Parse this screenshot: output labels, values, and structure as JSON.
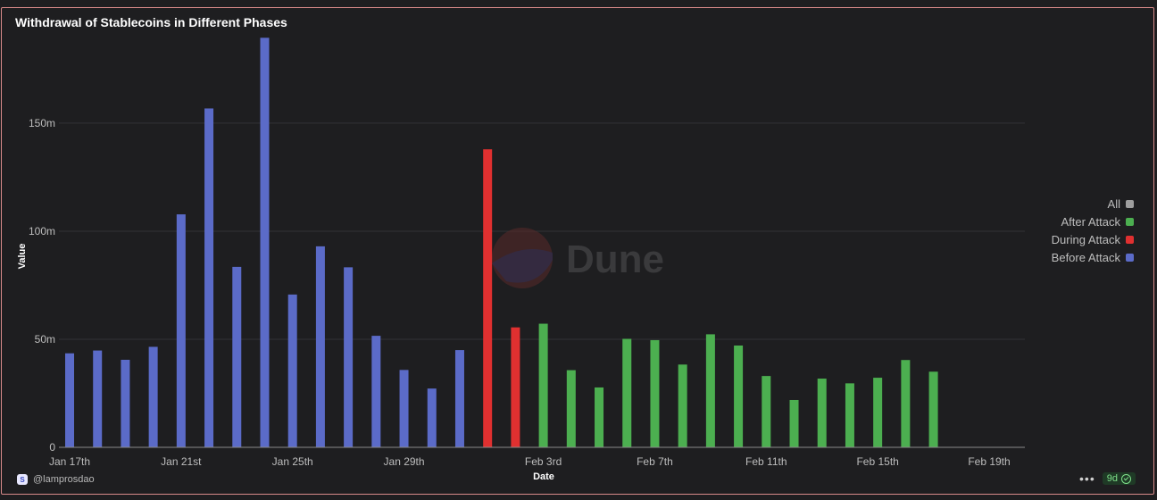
{
  "title": "Withdrawal of Stablecoins in Different Phases",
  "watermark": "Dune",
  "footer": {
    "user": "@lamprosdao",
    "age": "9d"
  },
  "legend": [
    {
      "label": "All",
      "color": "#9e9e9e"
    },
    {
      "label": "After Attack",
      "color": "#4caf50"
    },
    {
      "label": "During Attack",
      "color": "#e03030"
    },
    {
      "label": "Before Attack",
      "color": "#5b6bc8"
    }
  ],
  "chart_data": {
    "type": "bar",
    "xlabel": "Date",
    "ylabel": "Value",
    "ylim": [
      0,
      195000000
    ],
    "yticks": [
      {
        "value": 0,
        "label": "0"
      },
      {
        "value": 50000000,
        "label": "50m"
      },
      {
        "value": 100000000,
        "label": "100m"
      },
      {
        "value": 150000000,
        "label": "150m"
      }
    ],
    "xticks": [
      {
        "date": "2022-01-17",
        "label": "Jan 17th"
      },
      {
        "date": "2022-01-21",
        "label": "Jan 21st"
      },
      {
        "date": "2022-01-25",
        "label": "Jan 25th"
      },
      {
        "date": "2022-01-29",
        "label": "Jan 29th"
      },
      {
        "date": "2022-02-03",
        "label": "Feb 3rd"
      },
      {
        "date": "2022-02-07",
        "label": "Feb 7th"
      },
      {
        "date": "2022-02-11",
        "label": "Feb 11th"
      },
      {
        "date": "2022-02-15",
        "label": "Feb 15th"
      },
      {
        "date": "2022-02-19",
        "label": "Feb 19th"
      }
    ],
    "series": [
      {
        "name": "Before Attack",
        "color": "#5b6bc8",
        "dates": [
          "2022-01-17",
          "2022-01-18",
          "2022-01-19",
          "2022-01-20",
          "2022-01-21",
          "2022-01-22",
          "2022-01-23",
          "2022-01-24",
          "2022-01-25",
          "2022-01-26",
          "2022-01-27",
          "2022-01-28",
          "2022-01-29",
          "2022-01-30",
          "2022-01-31"
        ],
        "values": [
          43500000,
          44800000,
          40500000,
          46500000,
          107800000,
          156800000,
          83500000,
          189500000,
          70700000,
          93000000,
          83300000,
          51600000,
          35800000,
          27200000,
          45000000
        ]
      },
      {
        "name": "During Attack",
        "color": "#e03030",
        "dates": [
          "2022-02-01",
          "2022-02-02"
        ],
        "values": [
          137900000,
          55500000
        ]
      },
      {
        "name": "After Attack",
        "color": "#4caf50",
        "dates": [
          "2022-02-03",
          "2022-02-04",
          "2022-02-05",
          "2022-02-06",
          "2022-02-07",
          "2022-02-08",
          "2022-02-09",
          "2022-02-10",
          "2022-02-11",
          "2022-02-12",
          "2022-02-13",
          "2022-02-14",
          "2022-02-15",
          "2022-02-16",
          "2022-02-17",
          "2022-02-18"
        ],
        "values": [
          57200000,
          35700000,
          27700000,
          50200000,
          49600000,
          38300000,
          52300000,
          47100000,
          33000000,
          21900000,
          31800000,
          29600000,
          32200000,
          40400000,
          35000000,
          0
        ]
      }
    ]
  }
}
